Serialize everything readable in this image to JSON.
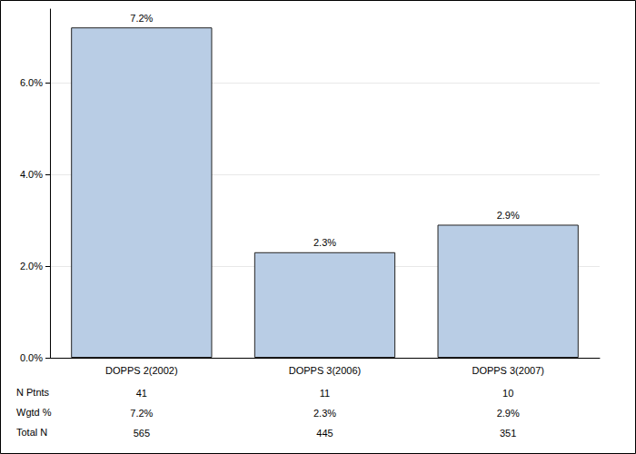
{
  "chart_data": {
    "type": "bar",
    "categories": [
      "DOPPS 2(2002)",
      "DOPPS 3(2006)",
      "DOPPS 3(2007)"
    ],
    "values": [
      7.2,
      2.3,
      2.9
    ],
    "value_labels": [
      "7.2%",
      "2.3%",
      "2.9%"
    ],
    "data_labels": true,
    "color": "#b9cde5",
    "ylim": [
      0,
      7.6
    ],
    "yticks": [
      {
        "value": 0,
        "label": "0.0%"
      },
      {
        "value": 2,
        "label": "2.0%"
      },
      {
        "value": 4,
        "label": "4.0%"
      },
      {
        "value": 6,
        "label": "6.0%"
      }
    ],
    "grid": true,
    "table": [
      {
        "label": "N Ptnts",
        "values": [
          41,
          11,
          10
        ]
      },
      {
        "label": "Wgtd %",
        "values": [
          7.2,
          2.3,
          2.9
        ],
        "value_labels": [
          "7.2%",
          "2.3%",
          "2.9%"
        ]
      },
      {
        "label": "Total N",
        "values": [
          565,
          445,
          351
        ]
      }
    ]
  }
}
